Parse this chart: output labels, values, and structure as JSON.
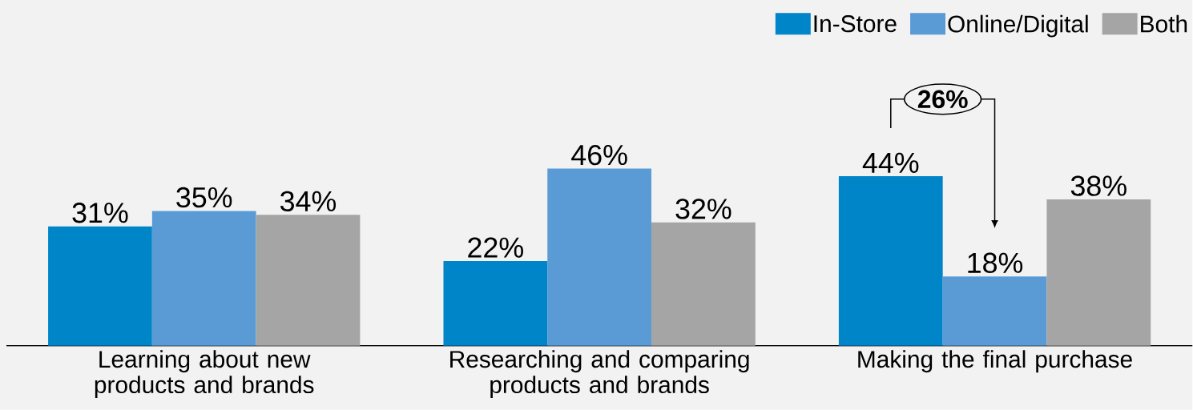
{
  "chart_data": {
    "type": "bar",
    "categories": [
      "Learning about new products and brands",
      "Researching and comparing products and brands",
      "Making the final purchase"
    ],
    "series": [
      {
        "name": "In-Store",
        "color": "#0085c8",
        "values": [
          31,
          22,
          44
        ],
        "value_labels": [
          "31%",
          "22%",
          "44%"
        ]
      },
      {
        "name": "Online/Digital",
        "color": "#5b9bd5",
        "values": [
          35,
          46,
          18
        ],
        "value_labels": [
          "35%",
          "46%",
          "18%"
        ]
      },
      {
        "name": "Both",
        "color": "#a5a5a5",
        "values": [
          34,
          32,
          38
        ],
        "value_labels": [
          "34%",
          "32%",
          "38%"
        ]
      }
    ],
    "legend": "top right",
    "annotations": [
      "26%"
    ]
  }
}
